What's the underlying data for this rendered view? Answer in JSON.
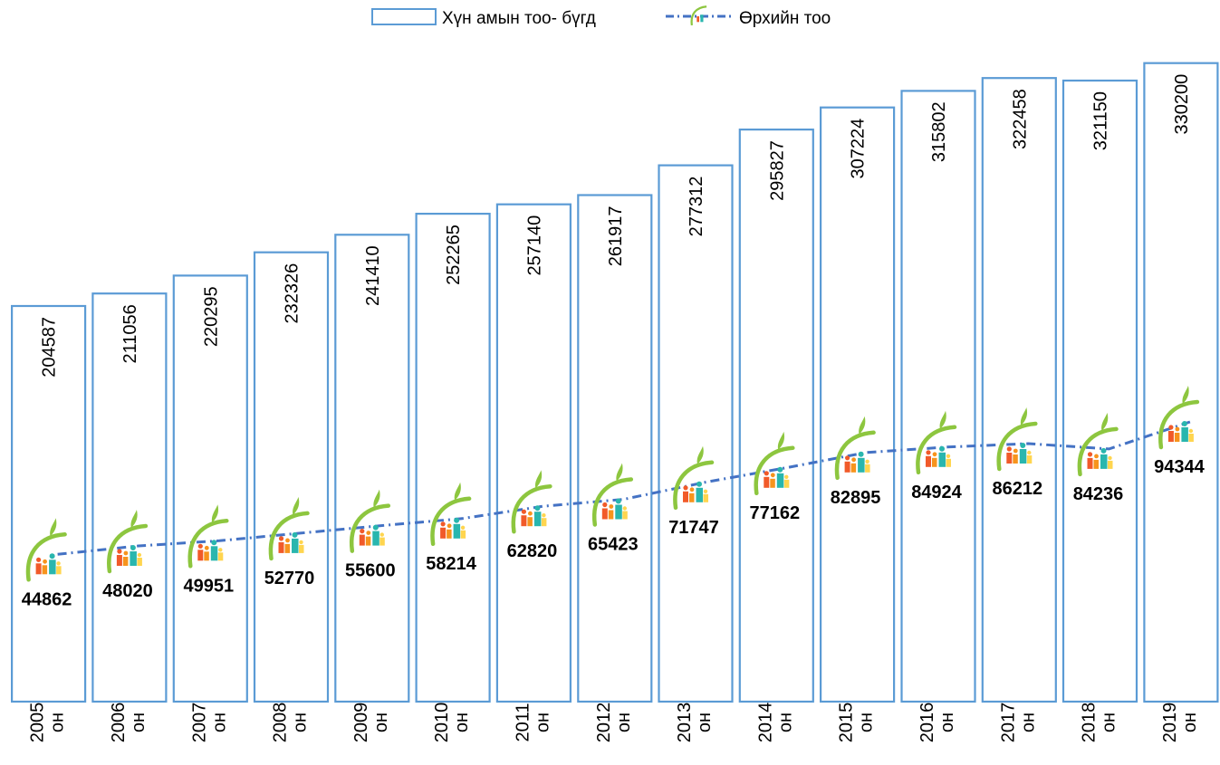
{
  "chart_data": {
    "type": "bar",
    "categories": [
      "2005 он",
      "2006 он",
      "2007 он",
      "2008 он",
      "2009 он",
      "2010 он",
      "2011 он",
      "2012 он",
      "2013 он",
      "2014 он",
      "2015 он",
      "2016 он",
      "2017 он",
      "2018 он",
      "2019 он"
    ],
    "series": [
      {
        "name": "Хүн амын тоо- бүгд",
        "type": "bar",
        "values": [
          204587,
          211056,
          220295,
          232326,
          241410,
          252265,
          257140,
          261917,
          277312,
          295827,
          307224,
          315802,
          322458,
          321150,
          330200
        ],
        "bar_fill": "#ffffff",
        "bar_stroke": "#5b9bd5"
      },
      {
        "name": "Өрхийн тоо",
        "type": "line",
        "values": [
          44862,
          48020,
          49951,
          52770,
          55600,
          58214,
          62820,
          65423,
          71747,
          77162,
          82895,
          84924,
          86212,
          84236,
          94344
        ],
        "line_color": "#4472c4",
        "line_style": "dash-dot",
        "marker": "family-logo-icon"
      }
    ],
    "legend_position": "top-center",
    "grid": false,
    "bar_labels_rotation": "vertical",
    "ylim": [
      0,
      360000
    ],
    "secondary_ylim": [
      0,
      260000
    ]
  }
}
